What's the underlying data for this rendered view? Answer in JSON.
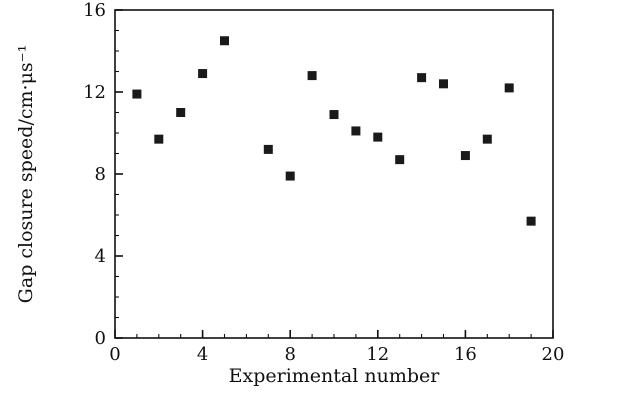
{
  "chart_data": {
    "type": "scatter",
    "title": "",
    "xlabel": "Experimental number",
    "ylabel": "Gap closure speed/cm·μs⁻¹",
    "xlim": [
      0,
      20
    ],
    "ylim": [
      0,
      16
    ],
    "xticks": [
      0,
      4,
      8,
      12,
      16,
      20
    ],
    "yticks": [
      0,
      4,
      8,
      12,
      16
    ],
    "minor_tick_interval_x": 1,
    "minor_tick_interval_y": 1,
    "grid": false,
    "legend": "none",
    "marker": "filled-square",
    "marker_color": "#1a1a1a",
    "axis_color": "#111111",
    "points": [
      {
        "x": 1,
        "y": 11.9
      },
      {
        "x": 2,
        "y": 9.7
      },
      {
        "x": 3,
        "y": 11.0
      },
      {
        "x": 4,
        "y": 12.9
      },
      {
        "x": 5,
        "y": 14.5
      },
      {
        "x": 7,
        "y": 9.2
      },
      {
        "x": 8,
        "y": 7.9
      },
      {
        "x": 9,
        "y": 12.8
      },
      {
        "x": 10,
        "y": 10.9
      },
      {
        "x": 11,
        "y": 10.1
      },
      {
        "x": 12,
        "y": 9.8
      },
      {
        "x": 13,
        "y": 8.7
      },
      {
        "x": 14,
        "y": 12.7
      },
      {
        "x": 15,
        "y": 12.4
      },
      {
        "x": 16,
        "y": 8.9
      },
      {
        "x": 17,
        "y": 9.7
      },
      {
        "x": 18,
        "y": 12.2
      },
      {
        "x": 19,
        "y": 5.7
      }
    ]
  }
}
